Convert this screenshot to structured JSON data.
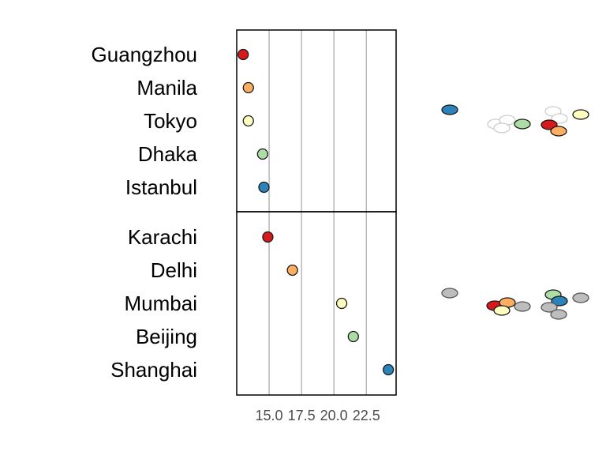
{
  "chart_data": {
    "type": "scatter",
    "title": "",
    "xlabel": "",
    "ylabel": "",
    "xlim": [
      12.5,
      24.8
    ],
    "x_ticks": [
      "15.0",
      "17.5",
      "20.0",
      "22.5"
    ],
    "x_tick_values": [
      15.0,
      17.5,
      20.0,
      22.5
    ],
    "grid": "vertical lines at x ticks",
    "legend": "none",
    "groups": [
      {
        "rows": [
          {
            "label": "Guangzhou",
            "value": 13.0,
            "color": "#d7191c"
          },
          {
            "label": "Manila",
            "value": 13.4,
            "color": "#fdae61"
          },
          {
            "label": "Tokyo",
            "value": 13.4,
            "color": "#ffffbf"
          },
          {
            "label": "Dhaka",
            "value": 14.5,
            "color": "#abdda4"
          },
          {
            "label": "Istanbul",
            "value": 14.6,
            "color": "#2b83ba"
          }
        ],
        "side_ellipses": [
          {
            "x": 570,
            "y": 139,
            "color": "#2b83ba",
            "outline": "#1a1a1a"
          },
          {
            "x": 628,
            "y": 157,
            "color": "#ffffff",
            "outline": "#cccccc"
          },
          {
            "x": 643,
            "y": 152,
            "color": "#ffffff",
            "outline": "#cccccc"
          },
          {
            "x": 636,
            "y": 162,
            "color": "#ffffff",
            "outline": "#cccccc"
          },
          {
            "x": 662,
            "y": 157,
            "color": "#abdda4",
            "outline": "#1a1a1a"
          },
          {
            "x": 701,
            "y": 141,
            "color": "#ffffff",
            "outline": "#cccccc"
          },
          {
            "x": 709,
            "y": 150,
            "color": "#ffffff",
            "outline": "#cccccc"
          },
          {
            "x": 696,
            "y": 158,
            "color": "#d7191c",
            "outline": "#1a1a1a"
          },
          {
            "x": 708,
            "y": 166,
            "color": "#fdae61",
            "outline": "#1a1a1a"
          },
          {
            "x": 736,
            "y": 145,
            "color": "#ffffbf",
            "outline": "#1a1a1a"
          }
        ]
      },
      {
        "rows": [
          {
            "label": "Karachi",
            "value": 14.9,
            "color": "#d7191c"
          },
          {
            "label": "Delhi",
            "value": 16.8,
            "color": "#fdae61"
          },
          {
            "label": "Mumbai",
            "value": 20.6,
            "color": "#ffffbf"
          },
          {
            "label": "Beijing",
            "value": 21.5,
            "color": "#abdda4"
          },
          {
            "label": "Shanghai",
            "value": 24.2,
            "color": "#2b83ba"
          }
        ],
        "side_ellipses": [
          {
            "x": 570,
            "y": 371,
            "color": "#bdbdbd",
            "outline": "#555555"
          },
          {
            "x": 627,
            "y": 387,
            "color": "#d7191c",
            "outline": "#1a1a1a"
          },
          {
            "x": 643,
            "y": 383,
            "color": "#fdae61",
            "outline": "#1a1a1a"
          },
          {
            "x": 636,
            "y": 393,
            "color": "#ffffbf",
            "outline": "#1a1a1a"
          },
          {
            "x": 662,
            "y": 388,
            "color": "#bdbdbd",
            "outline": "#555555"
          },
          {
            "x": 701,
            "y": 373,
            "color": "#abdda4",
            "outline": "#1a1a1a"
          },
          {
            "x": 709,
            "y": 381,
            "color": "#2b83ba",
            "outline": "#1a1a1a"
          },
          {
            "x": 696,
            "y": 389,
            "color": "#bdbdbd",
            "outline": "#555555"
          },
          {
            "x": 708,
            "y": 398,
            "color": "#bdbdbd",
            "outline": "#555555"
          },
          {
            "x": 736,
            "y": 377,
            "color": "#bdbdbd",
            "outline": "#555555"
          }
        ]
      }
    ]
  }
}
